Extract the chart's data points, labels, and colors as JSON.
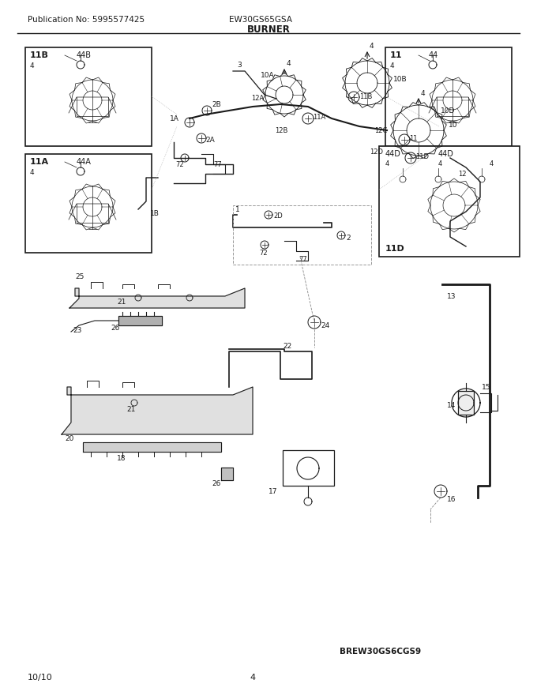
{
  "title": "BURNER",
  "pub_no": "Publication No: 5995577425",
  "model": "EW30GS65GSA",
  "page": "4",
  "date": "10/10",
  "watermark": "BREW30GS6CGS9",
  "bg_color": "#ffffff",
  "lc": "#1a1a1a",
  "gray": "#888888",
  "lightgray": "#dddddd"
}
